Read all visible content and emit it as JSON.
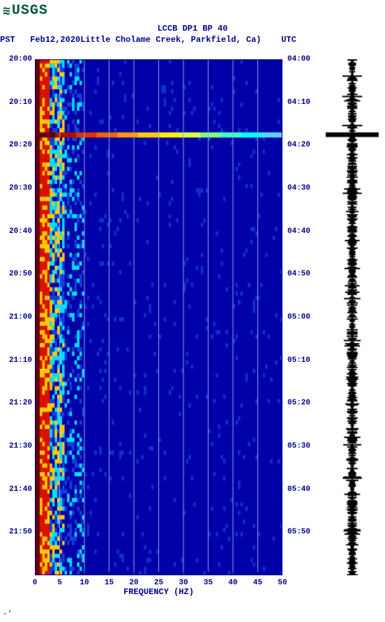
{
  "logo": {
    "text": "USGS"
  },
  "header": {
    "title": "LCCB DP1 BP 40",
    "left_tz": "PST",
    "date": "Feb12,2020",
    "location": "Little Cholame Creek, Parkfield, Ca)",
    "right_tz": "UTC"
  },
  "spectrogram": {
    "type": "heatmap",
    "background_color": "#0000a8",
    "low_freq_edge_color": "#660000",
    "low_freq_band_color": "#dd1100",
    "mid_band_color": "#ffcc00",
    "cyan_color": "#00e0ff",
    "gridline_color": "#9aa8e0",
    "gridline_width": 1,
    "event_line": {
      "time_index": 17,
      "colors": [
        "#660000",
        "#aa1100",
        "#dd3300",
        "#ee6600",
        "#ff9900",
        "#ffcc00",
        "#ffee00",
        "#dfff40",
        "#80ff80",
        "#40ffc0",
        "#00ffff",
        "#60d0ff"
      ]
    },
    "xlim": [
      0,
      50
    ],
    "xtick_step": 5,
    "xlabel": "FREQUENCY (HZ)",
    "y_left_ticks": [
      "20:00",
      "20:10",
      "20:20",
      "20:30",
      "20:40",
      "20:50",
      "21:00",
      "21:10",
      "21:20",
      "21:30",
      "21:40",
      "21:50"
    ],
    "y_right_ticks": [
      "04:00",
      "04:10",
      "04:20",
      "04:30",
      "04:40",
      "04:50",
      "05:00",
      "05:10",
      "05:20",
      "05:30",
      "05:40",
      "05:50"
    ],
    "time_rows": 120
  },
  "seismogram": {
    "trace_color": "#000000",
    "event_row": 17,
    "event_amp": 38,
    "base_amp_min": 1,
    "base_amp_max": 8
  },
  "colors": {
    "text": "#00008b",
    "logo": "#00573f"
  }
}
